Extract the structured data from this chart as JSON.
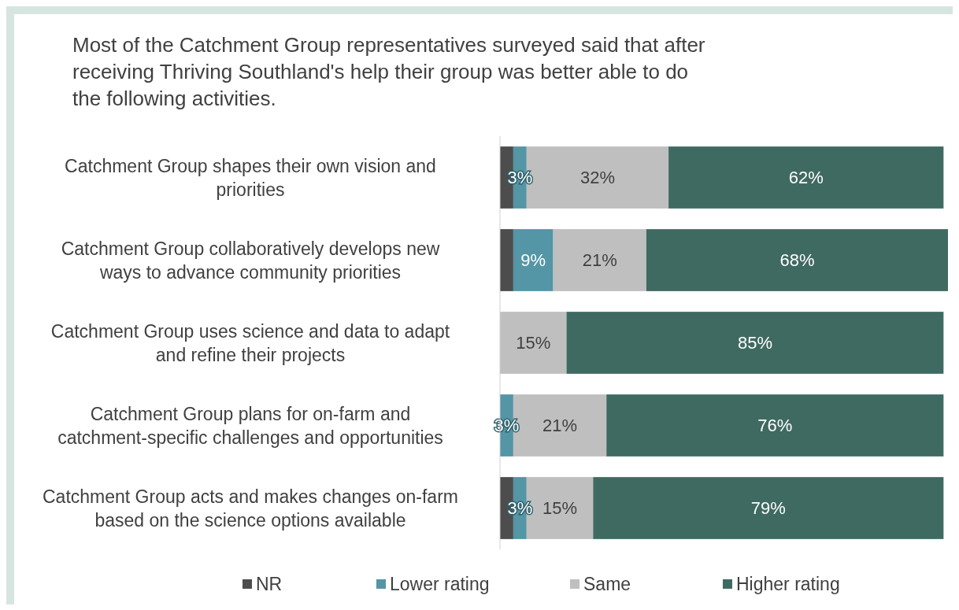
{
  "chart_data": {
    "type": "bar",
    "orientation": "horizontal",
    "stacked": true,
    "title": "Most of the Catchment Group representatives surveyed said that after receiving Thriving Southland's help their group was better able to do the following activities.",
    "categories": [
      "Catchment Group shapes their own vision and priorities",
      "Catchment Group collaboratively develops new ways to advance community priorities",
      "Catchment Group uses science and data to adapt and refine their projects",
      "Catchment Group plans for on-farm and catchment-specific challenges and opportunities",
      "Catchment Group acts and makes changes on-farm based on the science options available"
    ],
    "series": [
      {
        "name": "NR",
        "color": "#4d4d4d",
        "values": [
          3,
          3,
          null,
          null,
          3
        ],
        "value_labels": [
          null,
          null,
          null,
          null,
          null
        ]
      },
      {
        "name": "Lower rating",
        "color": "#5495a6",
        "values": [
          3,
          9,
          null,
          3,
          3
        ],
        "value_labels": [
          "3%",
          "9%",
          null,
          "3%",
          "3%"
        ]
      },
      {
        "name": "Same",
        "color": "#bfbfbf",
        "values": [
          32,
          21,
          15,
          21,
          15
        ],
        "value_labels": [
          "32%",
          "21%",
          "15%",
          "21%",
          "15%"
        ]
      },
      {
        "name": "Higher rating",
        "color": "#3f6a61",
        "values": [
          62,
          68,
          85,
          76,
          79
        ],
        "value_labels": [
          "62%",
          "68%",
          "85%",
          "76%",
          "79%"
        ]
      }
    ],
    "legend": "bottom"
  }
}
